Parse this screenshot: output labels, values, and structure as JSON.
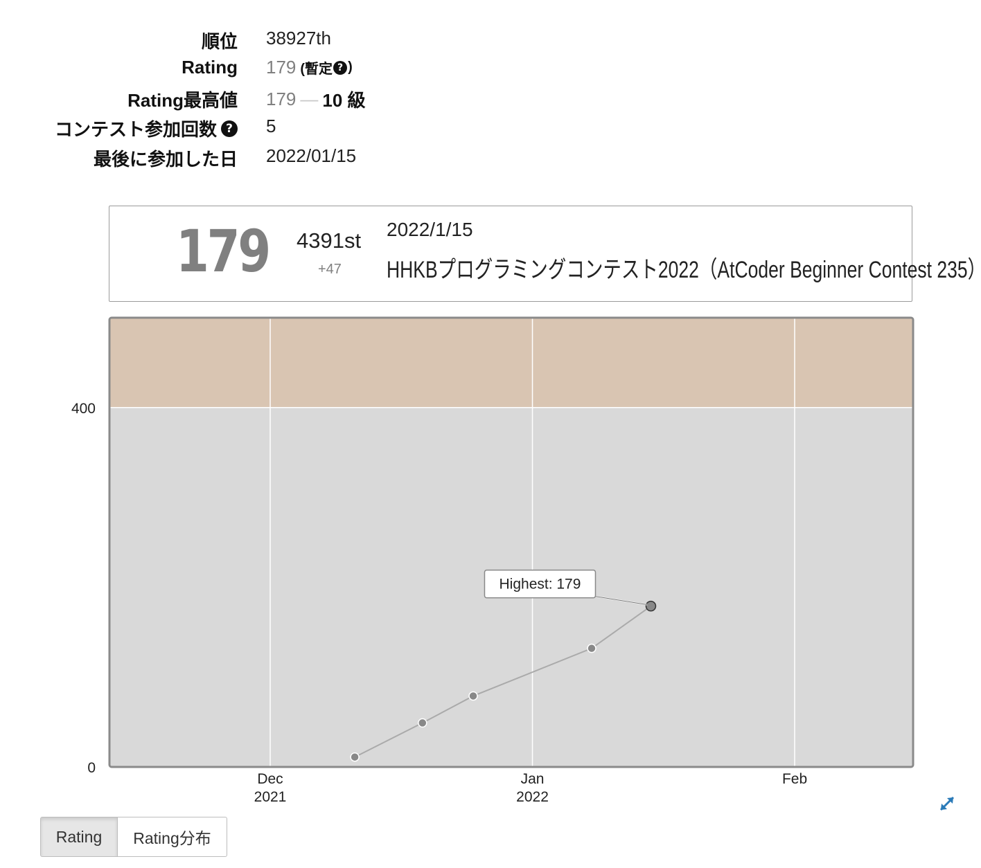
{
  "stats": {
    "rank": {
      "label": "順位",
      "value": "38927th"
    },
    "rating": {
      "label": "Rating",
      "value": "179",
      "provisional_open": "(暫定",
      "provisional_close": ")"
    },
    "highest": {
      "label": "Rating最高値",
      "value": "179",
      "separator": "—",
      "kyu": "10 級"
    },
    "contests": {
      "label": "コンテスト参加回数",
      "value": "5"
    },
    "last": {
      "label": "最後に参加した日",
      "value": "2022/01/15"
    },
    "help_glyph": "?"
  },
  "contest_card": {
    "rating": "179",
    "rank": "4391st",
    "diff": "+47",
    "date": "2022/1/15",
    "contest_name": "HHKBプログラミングコンテスト2022（AtCoder Beginner Contest 235）"
  },
  "chart_data": {
    "type": "line",
    "title": "",
    "xlabel": "",
    "ylabel": "",
    "x_range": [
      "2021-11-12",
      "2022-02-15"
    ],
    "ylim": [
      0,
      500
    ],
    "x_ticks": [
      {
        "date": "2021-12-01",
        "month": "Dec",
        "year": "2021"
      },
      {
        "date": "2022-01-01",
        "month": "Jan",
        "year": "2022"
      },
      {
        "date": "2022-02-01",
        "month": "Feb",
        "year": ""
      }
    ],
    "y_ticks": [
      0,
      400
    ],
    "bands": [
      {
        "from": 0,
        "to": 400,
        "color": "#d9d9d9"
      },
      {
        "from": 400,
        "to": 500,
        "color": "#d9c5b2"
      }
    ],
    "grid": true,
    "series": [
      {
        "points": [
          {
            "x": "2021-12-11",
            "y": 11
          },
          {
            "x": "2021-12-19",
            "y": 49
          },
          {
            "x": "2021-12-25",
            "y": 79
          },
          {
            "x": "2022-01-08",
            "y": 132
          },
          {
            "x": "2022-01-15",
            "y": 179
          }
        ],
        "color": "#888888"
      }
    ],
    "annotation": {
      "text": "Highest: 179",
      "point_index": 4
    }
  },
  "tabs": [
    {
      "label": "Rating",
      "active": true
    },
    {
      "label": "Rating分布",
      "active": false
    }
  ]
}
